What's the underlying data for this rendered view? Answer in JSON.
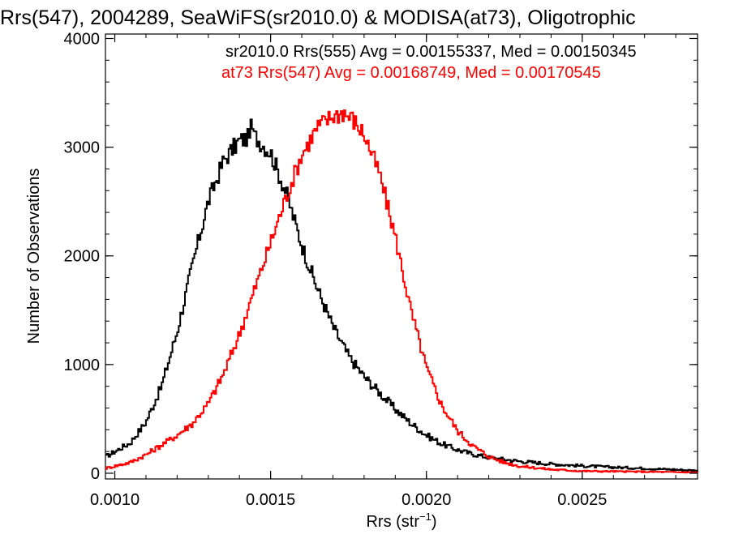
{
  "chart_data": {
    "type": "histogram",
    "title": "Rrs(547), 2004289, SeaWiFS(sr2010.0) & MODISA(at73), Oligotrophic",
    "xlabel": "Rrs (str",
    "xlabel_sup": "−1",
    "xlabel_close": ")",
    "ylabel": "Number of Observations",
    "xlim": [
      0.00097,
      0.00287
    ],
    "ylim": [
      0,
      4000
    ],
    "xticks": [
      {
        "value": 0.001,
        "label": "0.0010"
      },
      {
        "value": 0.0015,
        "label": "0.0015"
      },
      {
        "value": 0.002,
        "label": "0.0020"
      },
      {
        "value": 0.0025,
        "label": "0.0025"
      }
    ],
    "yticks": [
      {
        "value": 0,
        "label": "0"
      },
      {
        "value": 1000,
        "label": "1000"
      },
      {
        "value": 2000,
        "label": "2000"
      },
      {
        "value": 3000,
        "label": "3000"
      },
      {
        "value": 4000,
        "label": "4000"
      }
    ],
    "series": [
      {
        "legend": "sr2010.0 Rrs(555) Avg = 0.00155337, Med = 0.00150345",
        "color": "#000000",
        "style": "step",
        "anchors": [
          [
            0.00097,
            150
          ],
          [
            0.00105,
            280
          ],
          [
            0.0011,
            470
          ],
          [
            0.00115,
            800
          ],
          [
            0.0012,
            1300
          ],
          [
            0.00125,
            1920
          ],
          [
            0.0013,
            2500
          ],
          [
            0.00135,
            2880
          ],
          [
            0.0014,
            3060
          ],
          [
            0.00145,
            3100
          ],
          [
            0.0015,
            2950
          ],
          [
            0.00155,
            2580
          ],
          [
            0.0016,
            2100
          ],
          [
            0.00165,
            1700
          ],
          [
            0.0017,
            1350
          ],
          [
            0.00175,
            1080
          ],
          [
            0.0018,
            890
          ],
          [
            0.00185,
            740
          ],
          [
            0.0019,
            590
          ],
          [
            0.00195,
            460
          ],
          [
            0.002,
            350
          ],
          [
            0.00205,
            270
          ],
          [
            0.0021,
            215
          ],
          [
            0.00215,
            175
          ],
          [
            0.0022,
            145
          ],
          [
            0.0023,
            110
          ],
          [
            0.0024,
            85
          ],
          [
            0.0025,
            68
          ],
          [
            0.0026,
            55
          ],
          [
            0.0027,
            45
          ],
          [
            0.00287,
            25
          ]
        ],
        "peak": {
          "x": 0.00144,
          "y": 3170
        }
      },
      {
        "legend": "at73 Rrs(547) Avg = 0.00168749, Med = 0.00170545",
        "color": "#ff0000",
        "style": "step",
        "anchors": [
          [
            0.00097,
            45
          ],
          [
            0.00105,
            100
          ],
          [
            0.0011,
            170
          ],
          [
            0.00115,
            260
          ],
          [
            0.0012,
            350
          ],
          [
            0.00125,
            460
          ],
          [
            0.0013,
            640
          ],
          [
            0.00135,
            920
          ],
          [
            0.0014,
            1280
          ],
          [
            0.00145,
            1700
          ],
          [
            0.0015,
            2120
          ],
          [
            0.00155,
            2540
          ],
          [
            0.0016,
            2930
          ],
          [
            0.00165,
            3180
          ],
          [
            0.0017,
            3290
          ],
          [
            0.00173,
            3310
          ],
          [
            0.00176,
            3270
          ],
          [
            0.0018,
            3120
          ],
          [
            0.00185,
            2750
          ],
          [
            0.0019,
            2180
          ],
          [
            0.00195,
            1500
          ],
          [
            0.002,
            970
          ],
          [
            0.00205,
            620
          ],
          [
            0.0021,
            390
          ],
          [
            0.00215,
            250
          ],
          [
            0.0022,
            155
          ],
          [
            0.00225,
            100
          ],
          [
            0.0023,
            65
          ],
          [
            0.0024,
            35
          ],
          [
            0.0025,
            20
          ],
          [
            0.00287,
            8
          ]
        ],
        "peak": {
          "x": 0.001735,
          "y": 3320
        }
      }
    ],
    "grid": false,
    "legend_position": "top-left inside plot"
  }
}
